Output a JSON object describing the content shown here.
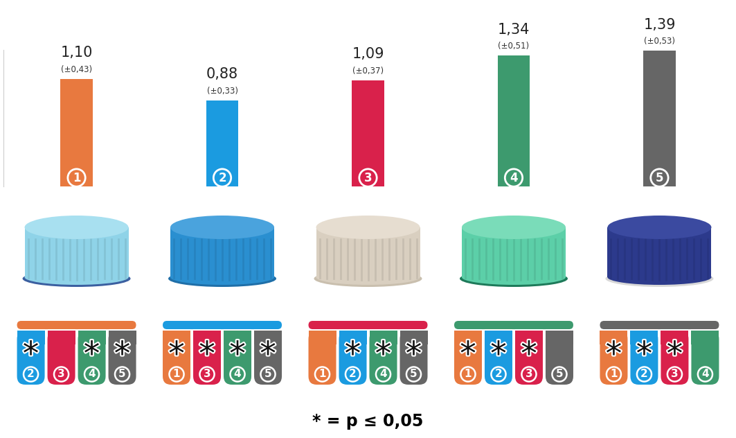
{
  "chart_data": {
    "type": "bar",
    "categories": [
      "1",
      "2",
      "3",
      "4",
      "5"
    ],
    "values": [
      1.1,
      0.88,
      1.09,
      1.34,
      1.39
    ],
    "value_labels": [
      "1,10",
      "0,88",
      "1,09",
      "1,34",
      "1,39"
    ],
    "error_labels": [
      "(±0,43)",
      "(±0,33)",
      "(±0,37)",
      "(±0,51)",
      "(±0,53)"
    ],
    "colors": [
      "#e8793f",
      "#1b9be0",
      "#d9214b",
      "#3d9a6e",
      "#666666"
    ],
    "ylim": [
      0,
      1.4
    ],
    "data_labels": true,
    "tick_labels": false,
    "significance_mark": "*",
    "comparisons": [
      [
        {
          "group": "2",
          "significant": true
        },
        {
          "group": "3",
          "significant": false
        },
        {
          "group": "4",
          "significant": true
        },
        {
          "group": "5",
          "significant": true
        }
      ],
      [
        {
          "group": "1",
          "significant": true
        },
        {
          "group": "3",
          "significant": true
        },
        {
          "group": "4",
          "significant": true
        },
        {
          "group": "5",
          "significant": true
        }
      ],
      [
        {
          "group": "1",
          "significant": false
        },
        {
          "group": "2",
          "significant": true
        },
        {
          "group": "4",
          "significant": true
        },
        {
          "group": "5",
          "significant": true
        }
      ],
      [
        {
          "group": "1",
          "significant": true
        },
        {
          "group": "2",
          "significant": true
        },
        {
          "group": "3",
          "significant": true
        },
        {
          "group": "5",
          "significant": false
        }
      ],
      [
        {
          "group": "1",
          "significant": true
        },
        {
          "group": "2",
          "significant": true
        },
        {
          "group": "3",
          "significant": true
        },
        {
          "group": "4",
          "significant": false
        }
      ]
    ],
    "footnote": "* = p ≤ 0,05"
  }
}
